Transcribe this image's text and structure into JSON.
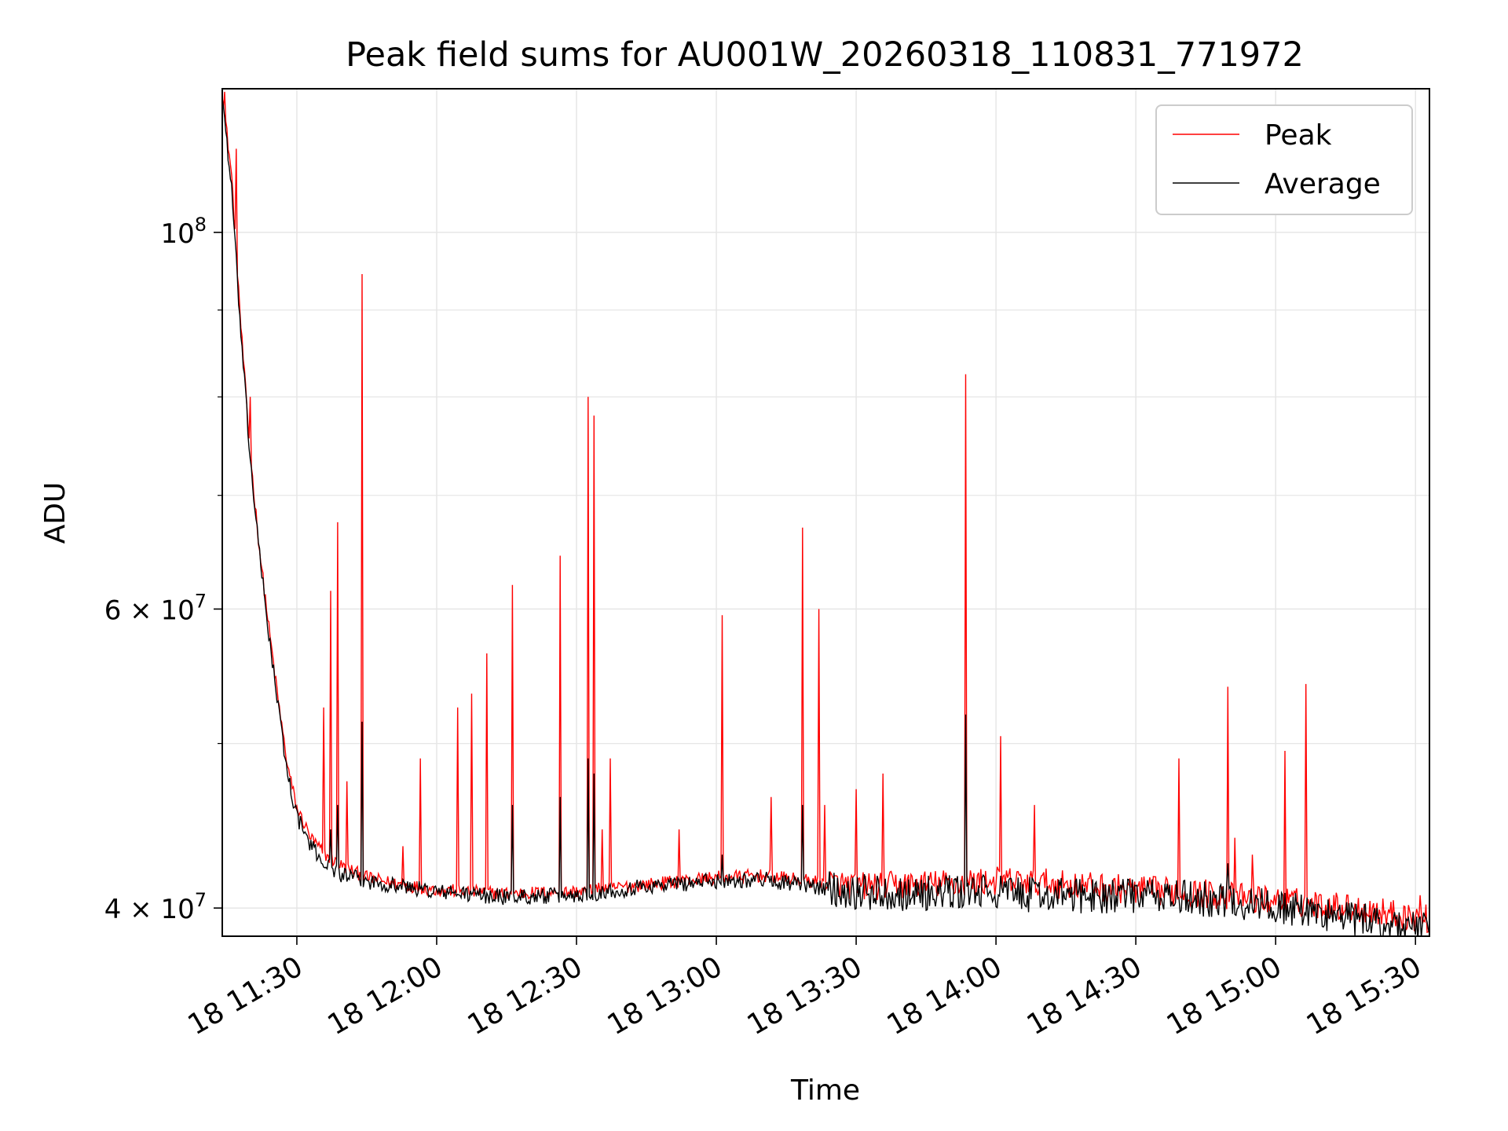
{
  "chart_data": {
    "type": "line",
    "title": "Peak field sums for AU001W_20260318_110831_771972",
    "xlabel": "Time",
    "ylabel": "ADU",
    "yscale": "log",
    "ylim": [
      38500000,
      121500000
    ],
    "xlim": [
      "2026-03-18T11:14:00",
      "2026-03-18T15:33:00"
    ],
    "grid": true,
    "legend": "top-right",
    "x_ticks": [
      "18 11:30",
      "18 12:00",
      "18 12:30",
      "18 13:00",
      "18 13:30",
      "18 14:00",
      "18 14:30",
      "18 15:00",
      "18 15:30"
    ],
    "y_ticks": [
      {
        "value": 100000000,
        "mantissa": "",
        "base": "10",
        "exp": "8"
      },
      {
        "value": 60000000,
        "mantissa": "6 × ",
        "base": "10",
        "exp": "7"
      },
      {
        "value": 40000000,
        "mantissa": "4 × ",
        "base": "10",
        "exp": "7"
      }
    ],
    "series": [
      {
        "name": "Peak",
        "color": "#ff0000",
        "baseline": [
          [
            "2026-03-18T11:14:00",
            121000000
          ],
          [
            "2026-03-18T11:16:00",
            108000000
          ],
          [
            "2026-03-18T11:18:00",
            88000000
          ],
          [
            "2026-03-18T11:20:00",
            74000000
          ],
          [
            "2026-03-18T11:22:00",
            65000000
          ],
          [
            "2026-03-18T11:24:00",
            58500000
          ],
          [
            "2026-03-18T11:26:00",
            53000000
          ],
          [
            "2026-03-18T11:28:00",
            48500000
          ],
          [
            "2026-03-18T11:30:00",
            45800000
          ],
          [
            "2026-03-18T11:33:00",
            44000000
          ],
          [
            "2026-03-18T11:36:00",
            43000000
          ],
          [
            "2026-03-18T11:40:00",
            42300000
          ],
          [
            "2026-03-18T11:45:00",
            41700000
          ],
          [
            "2026-03-18T11:50:00",
            41400000
          ],
          [
            "2026-03-18T12:00:00",
            41000000
          ],
          [
            "2026-03-18T12:15:00",
            40800000
          ],
          [
            "2026-03-18T12:30:00",
            40900000
          ],
          [
            "2026-03-18T12:45:00",
            41300000
          ],
          [
            "2026-03-18T13:00:00",
            41700000
          ],
          [
            "2026-03-18T13:10:00",
            41800000
          ],
          [
            "2026-03-18T13:20:00",
            41500000
          ],
          [
            "2026-03-18T13:30:00",
            41200000
          ],
          [
            "2026-03-18T13:45:00",
            41300000
          ],
          [
            "2026-03-18T14:00:00",
            41500000
          ],
          [
            "2026-03-18T14:10:00",
            41400000
          ],
          [
            "2026-03-18T14:30:00",
            41000000
          ],
          [
            "2026-03-18T14:45:00",
            40800000
          ],
          [
            "2026-03-18T15:00:00",
            40400000
          ],
          [
            "2026-03-18T15:10:00",
            40200000
          ],
          [
            "2026-03-18T15:20:00",
            39900000
          ],
          [
            "2026-03-18T15:33:00",
            39400000
          ]
        ],
        "spikes": [
          [
            "2026-03-18T11:14:30",
            121000000
          ],
          [
            "2026-03-18T11:17:00",
            112000000
          ],
          [
            "2026-03-18T11:20:00",
            80000000
          ],
          [
            "2026-03-18T11:35:40",
            52500000
          ],
          [
            "2026-03-18T11:37:20",
            61500000
          ],
          [
            "2026-03-18T11:38:40",
            67500000
          ],
          [
            "2026-03-18T11:40:50",
            47500000
          ],
          [
            "2026-03-18T11:44:00",
            94500000
          ],
          [
            "2026-03-18T11:52:50",
            43500000
          ],
          [
            "2026-03-18T11:56:30",
            49000000
          ],
          [
            "2026-03-18T12:04:30",
            52500000
          ],
          [
            "2026-03-18T12:07:30",
            53500000
          ],
          [
            "2026-03-18T12:10:40",
            56500000
          ],
          [
            "2026-03-18T12:16:20",
            62000000
          ],
          [
            "2026-03-18T12:26:30",
            64500000
          ],
          [
            "2026-03-18T12:32:30",
            80000000
          ],
          [
            "2026-03-18T12:33:50",
            78000000
          ],
          [
            "2026-03-18T12:35:30",
            44500000
          ],
          [
            "2026-03-18T12:37:20",
            49000000
          ],
          [
            "2026-03-18T12:52:00",
            44500000
          ],
          [
            "2026-03-18T13:01:20",
            59500000
          ],
          [
            "2026-03-18T13:11:40",
            46500000
          ],
          [
            "2026-03-18T13:18:30",
            67000000
          ],
          [
            "2026-03-18T13:22:00",
            60000000
          ],
          [
            "2026-03-18T13:23:20",
            46000000
          ],
          [
            "2026-03-18T13:30:00",
            47000000
          ],
          [
            "2026-03-18T13:35:40",
            48000000
          ],
          [
            "2026-03-18T13:53:30",
            82500000
          ],
          [
            "2026-03-18T14:01:00",
            50500000
          ],
          [
            "2026-03-18T14:08:20",
            46000000
          ],
          [
            "2026-03-18T14:39:20",
            49000000
          ],
          [
            "2026-03-18T14:49:50",
            54000000
          ],
          [
            "2026-03-18T14:51:20",
            44000000
          ],
          [
            "2026-03-18T14:55:00",
            43000000
          ],
          [
            "2026-03-18T15:02:00",
            49500000
          ],
          [
            "2026-03-18T15:06:30",
            54200000
          ],
          [
            "2026-03-18T15:31:00",
            40700000
          ]
        ]
      },
      {
        "name": "Average",
        "color": "#000000",
        "baseline": [
          [
            "2026-03-18T11:14:00",
            120500000
          ],
          [
            "2026-03-18T11:16:00",
            106000000
          ],
          [
            "2026-03-18T11:18:00",
            87000000
          ],
          [
            "2026-03-18T11:20:00",
            73500000
          ],
          [
            "2026-03-18T11:22:00",
            64500000
          ],
          [
            "2026-03-18T11:24:00",
            58000000
          ],
          [
            "2026-03-18T11:26:00",
            52500000
          ],
          [
            "2026-03-18T11:28:00",
            48000000
          ],
          [
            "2026-03-18T11:30:00",
            45300000
          ],
          [
            "2026-03-18T11:33:00",
            43500000
          ],
          [
            "2026-03-18T11:36:00",
            42500000
          ],
          [
            "2026-03-18T11:40:00",
            41800000
          ],
          [
            "2026-03-18T11:45:00",
            41500000
          ],
          [
            "2026-03-18T11:50:00",
            41300000
          ],
          [
            "2026-03-18T12:00:00",
            40900000
          ],
          [
            "2026-03-18T12:15:00",
            40600000
          ],
          [
            "2026-03-18T12:30:00",
            40700000
          ],
          [
            "2026-03-18T12:45:00",
            41200000
          ],
          [
            "2026-03-18T13:00:00",
            41500000
          ],
          [
            "2026-03-18T13:10:00",
            41600000
          ],
          [
            "2026-03-18T13:20:00",
            41200000
          ],
          [
            "2026-03-18T13:30:00",
            40900000
          ],
          [
            "2026-03-18T13:45:00",
            40800000
          ],
          [
            "2026-03-18T14:00:00",
            40900000
          ],
          [
            "2026-03-18T14:10:00",
            40700000
          ],
          [
            "2026-03-18T14:30:00",
            40700000
          ],
          [
            "2026-03-18T14:45:00",
            40500000
          ],
          [
            "2026-03-18T15:00:00",
            40100000
          ],
          [
            "2026-03-18T15:10:00",
            39700000
          ],
          [
            "2026-03-18T15:20:00",
            39300000
          ],
          [
            "2026-03-18T15:33:00",
            38900000
          ]
        ],
        "spikes": [
          [
            "2026-03-18T11:37:20",
            44500000
          ],
          [
            "2026-03-18T11:38:40",
            46000000
          ],
          [
            "2026-03-18T11:44:00",
            51500000
          ],
          [
            "2026-03-18T12:16:20",
            46000000
          ],
          [
            "2026-03-18T12:26:30",
            46500000
          ],
          [
            "2026-03-18T12:32:30",
            49000000
          ],
          [
            "2026-03-18T12:33:50",
            48000000
          ],
          [
            "2026-03-18T13:01:20",
            43000000
          ],
          [
            "2026-03-18T13:18:30",
            46000000
          ],
          [
            "2026-03-18T13:53:30",
            52000000
          ],
          [
            "2026-03-18T14:49:50",
            42500000
          ]
        ]
      }
    ]
  }
}
